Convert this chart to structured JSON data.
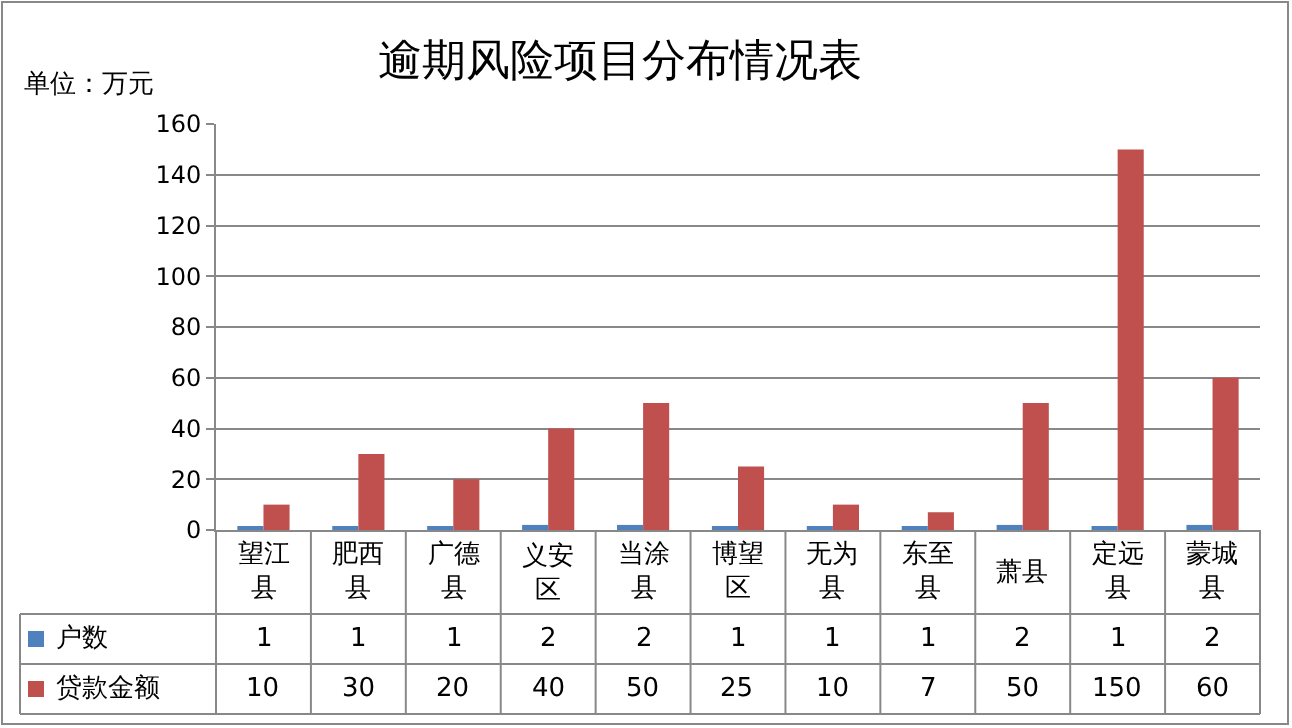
{
  "chart_data": {
    "type": "bar",
    "title": "逾期风险项目分布情况表",
    "annotations": [
      "单位：万元"
    ],
    "categories": [
      "望江县",
      "肥西县",
      "广德县",
      "义安区",
      "当涂县",
      "博望区",
      "无为县",
      "东至县",
      "萧县",
      "定远县",
      "蒙城县"
    ],
    "series": [
      {
        "name": "户数",
        "color": "#4f81bd",
        "values": [
          1,
          1,
          1,
          2,
          2,
          1,
          1,
          1,
          2,
          1,
          2
        ]
      },
      {
        "name": "贷款金额",
        "color": "#c0504d",
        "values": [
          10,
          30,
          20,
          40,
          50,
          25,
          10,
          7,
          50,
          150,
          60
        ]
      }
    ],
    "ylim": [
      0,
      160
    ],
    "yticks": [
      0,
      20,
      40,
      60,
      80,
      100,
      120,
      140,
      160
    ],
    "grid": "y",
    "data_labels": true,
    "legend": "bottom left"
  }
}
